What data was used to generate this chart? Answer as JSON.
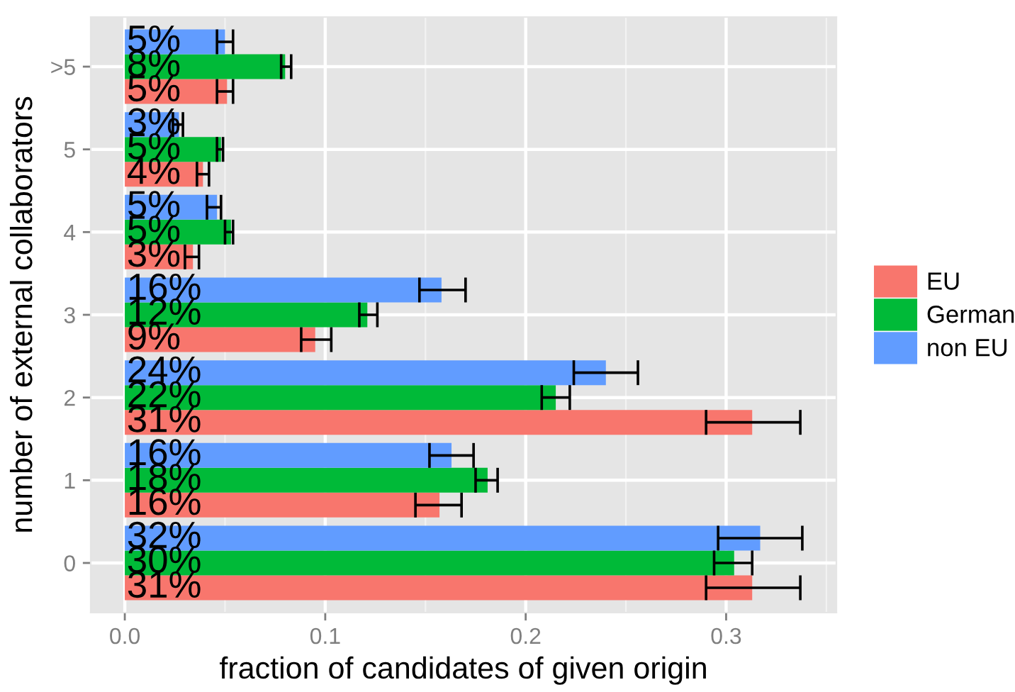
{
  "chart_data": {
    "type": "bar",
    "orientation": "horizontal",
    "xlabel": "fraction of candidates of given origin",
    "ylabel": "number of external collaborators",
    "categories": [
      ">5",
      "5",
      "4",
      "3",
      "2",
      "1",
      "0"
    ],
    "series": [
      {
        "name": "EU",
        "color": "#f8766d",
        "values": [
          0.051,
          0.039,
          0.034,
          0.095,
          0.313,
          0.157,
          0.313
        ],
        "errors": [
          [
            0.046,
            0.054
          ],
          [
            0.036,
            0.042
          ],
          [
            0.03,
            0.037
          ],
          [
            0.088,
            0.103
          ],
          [
            0.29,
            0.337
          ],
          [
            0.145,
            0.168
          ],
          [
            0.29,
            0.337
          ]
        ],
        "value_labels": [
          "5%",
          "4%",
          "3%",
          "9%",
          "31%",
          "16%",
          "31%"
        ]
      },
      {
        "name": "German",
        "color": "#00ba38",
        "values": [
          0.08,
          0.048,
          0.053,
          0.121,
          0.215,
          0.181,
          0.304
        ],
        "errors": [
          [
            0.078,
            0.083
          ],
          [
            0.046,
            0.049
          ],
          [
            0.05,
            0.054
          ],
          [
            0.117,
            0.126
          ],
          [
            0.208,
            0.222
          ],
          [
            0.175,
            0.186
          ],
          [
            0.294,
            0.313
          ]
        ],
        "value_labels": [
          "8%",
          "5%",
          "5%",
          "12%",
          "22%",
          "18%",
          "30%"
        ]
      },
      {
        "name": "non EU",
        "color": "#619cff",
        "values": [
          0.05,
          0.027,
          0.046,
          0.158,
          0.24,
          0.163,
          0.317
        ],
        "errors": [
          [
            0.046,
            0.054
          ],
          [
            0.024,
            0.029
          ],
          [
            0.041,
            0.048
          ],
          [
            0.147,
            0.17
          ],
          [
            0.224,
            0.256
          ],
          [
            0.152,
            0.174
          ],
          [
            0.296,
            0.338
          ]
        ],
        "value_labels": [
          "5%",
          "3%",
          "5%",
          "16%",
          "24%",
          "16%",
          "32%"
        ]
      }
    ],
    "xlim": [
      -0.017,
      0.355
    ],
    "xticks": [
      {
        "value": 0,
        "label": "0.0"
      },
      0.1,
      0.2,
      0.3
    ],
    "grid": true,
    "legend": "right"
  }
}
